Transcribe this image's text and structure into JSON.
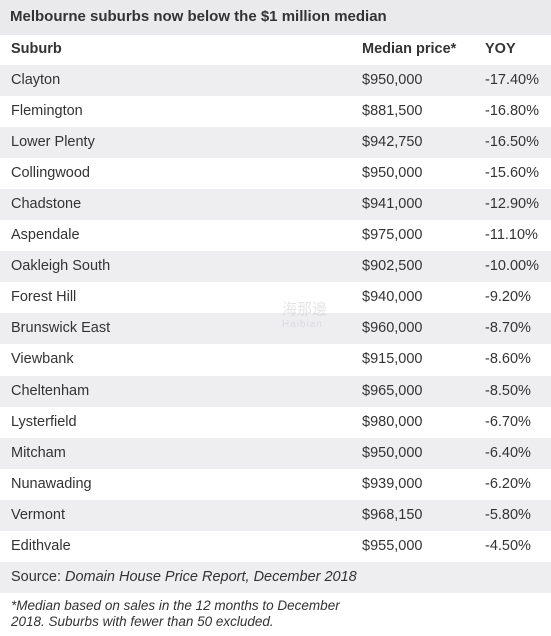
{
  "title": "Melbourne suburbs now below the $1 million median",
  "columns": [
    "Suburb",
    "Median price*",
    "YOY"
  ],
  "rows": [
    [
      "Clayton",
      "$950,000",
      "-17.40%"
    ],
    [
      "Flemington",
      "$881,500",
      "-16.80%"
    ],
    [
      "Lower Plenty",
      "$942,750",
      "-16.50%"
    ],
    [
      "Collingwood",
      "$950,000",
      "-15.60%"
    ],
    [
      "Chadstone",
      "$941,000",
      "-12.90%"
    ],
    [
      "Aspendale",
      "$975,000",
      "-11.10%"
    ],
    [
      "Oakleigh South",
      "$902,500",
      "-10.00%"
    ],
    [
      "Forest Hill",
      "$940,000",
      "-9.20%"
    ],
    [
      "Brunswick East",
      "$960,000",
      "-8.70%"
    ],
    [
      "Viewbank",
      "$915,000",
      "-8.60%"
    ],
    [
      "Cheltenham",
      "$965,000",
      "-8.50%"
    ],
    [
      "Lysterfield",
      "$980,000",
      "-6.70%"
    ],
    [
      "Mitcham",
      "$950,000",
      "-6.40%"
    ],
    [
      "Nunawading",
      "$939,000",
      "-6.20%"
    ],
    [
      "Vermont",
      "$968,150",
      "-5.80%"
    ],
    [
      "Edithvale",
      "$955,000",
      "-4.50%"
    ]
  ],
  "source": {
    "prefix": "Source: ",
    "name": "Domain House Price Report, December 2018"
  },
  "note": "*Median based on sales in the 12 months to December 2018. Suburbs with fewer than 50 excluded.",
  "watermark": {
    "main": "海那邊",
    "sub": "Haibian"
  },
  "colors": {
    "title_bg": "#eaeaed",
    "stripe_bg": "#eeeef1",
    "text": "#333333"
  }
}
